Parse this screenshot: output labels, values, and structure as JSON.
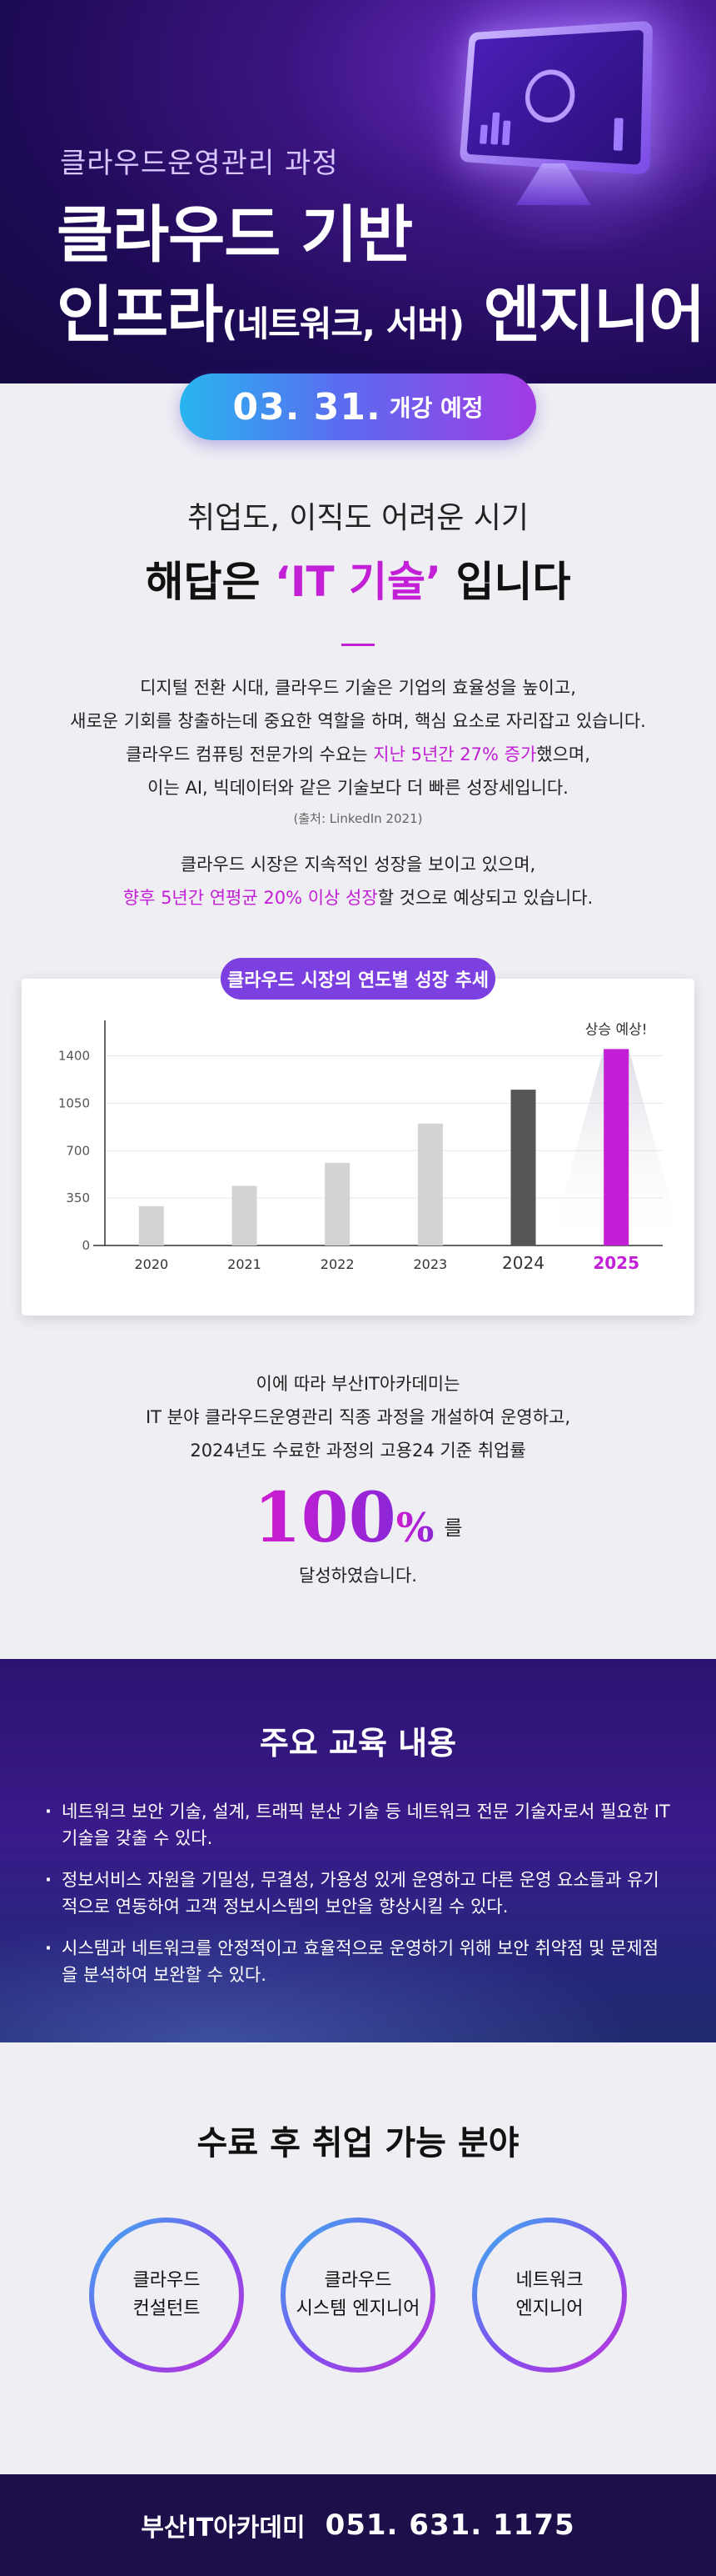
{
  "hero": {
    "subtitle": "클라우드운영관리 과정",
    "title_line1": "클라우드 기반",
    "title_line2_a": "인프라",
    "title_line2_small": "(네트워크, 서버)",
    "title_line2_b": " 엔지니어"
  },
  "schedule": {
    "date": "03. 31.",
    "label": "개강 예정"
  },
  "intro": {
    "question": "취업도, 이직도 어려운 시기",
    "answer_pre": "해답은 ",
    "answer_highlight": "‘IT 기술’",
    "answer_post": " 입니다",
    "p1_l1": "디지털 전환 시대, 클라우드 기술은 기업의 효율성을 높이고,",
    "p1_l2": "새로운 기회를 창출하는데 중요한 역할을 하며, 핵심 요소로 자리잡고 있습니다.",
    "p1_l3_pre": "클라우드 컴퓨팅 전문가의 수요는 ",
    "p1_l3_hl": "지난 5년간 27% 증가",
    "p1_l3_post": "했으며,",
    "p1_l4": "이는 AI, 빅데이터와 같은 기술보다 더 빠른 성장세입니다.",
    "source": "(출처: LinkedIn 2021)",
    "p2_l1": "클라우드 시장은 지속적인 성장을 보이고 있으며,",
    "p2_l2_hl": "향후 5년간 연평균 20% 이상 성장",
    "p2_l2_post": "할 것으로 예상되고 있습니다."
  },
  "chart_data": {
    "type": "bar",
    "title": "클라우드 시장의 연도별 성장 추세",
    "categories": [
      "2020",
      "2021",
      "2022",
      "2023",
      "2024",
      "2025"
    ],
    "values": [
      290,
      440,
      610,
      900,
      1150,
      1450
    ],
    "ylim": [
      0,
      1600
    ],
    "yticks": [
      0,
      350,
      700,
      1050,
      1400
    ],
    "annotation": "상승 예상!",
    "grid": true,
    "bar_colors": [
      "#d3d3d3",
      "#d3d3d3",
      "#d3d3d3",
      "#d3d3d3",
      "#555555",
      "#c21fd6"
    ]
  },
  "result": {
    "l1": "이에 따라 부산IT아카데미는",
    "l2": "IT 분야 클라우드운영관리 직종 과정을 개설하여 운영하고,",
    "l3": "2024년도 수료한 과정의 고용24 기준 취업률",
    "rate_num": "100",
    "rate_pct": "%",
    "rate_suffix": "를",
    "l4": "달성하였습니다."
  },
  "education": {
    "title": "주요 교육 내용",
    "items": [
      "네트워크 보안 기술, 설계, 트래픽 분산 기술 등 네트워크 전문 기술자로서 필요한 IT 기술을 갖출 수 있다.",
      "정보서비스 자원을 기밀성, 무결성, 가용성 있게 운영하고 다른 운영 요소들과 유기적으로 연동하여 고객 정보시스템의 보안을 향상시킬 수 있다.",
      "시스템과 네트워크를 안정적이고 효율적으로 운영하기 위해 보안 취약점 및 문제점을 분석하여 보완할 수 있다."
    ]
  },
  "jobs": {
    "title": "수료 후 취업 가능 분야",
    "fields": [
      {
        "l1": "클라우드",
        "l2": "컨설턴트"
      },
      {
        "l1": "클라우드",
        "l2": "시스템 엔지니어"
      },
      {
        "l1": "네트워크",
        "l2": "엔지니어"
      }
    ]
  },
  "footer": {
    "brand": "부산IT아카데미",
    "phone": "051. 631. 1175"
  },
  "colors": {
    "accent": "#c21fd6",
    "hero_bg": "#1d0a55",
    "pill_start": "#27b6ef",
    "pill_end": "#a23be3",
    "footer_bg": "#1d0f4a"
  }
}
